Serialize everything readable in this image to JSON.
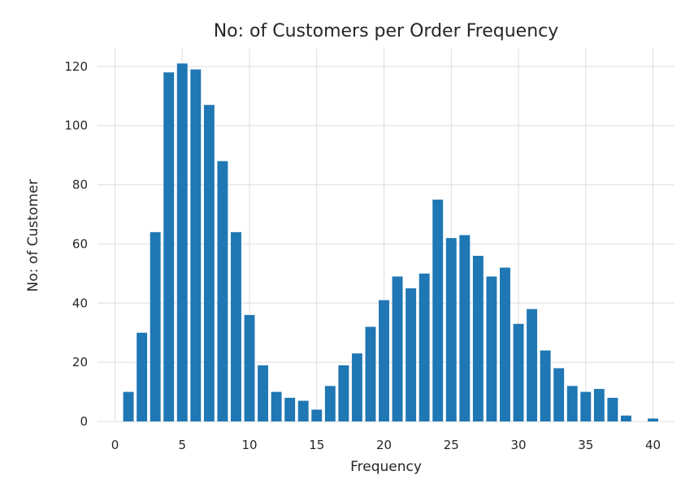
{
  "chart_data": {
    "type": "bar",
    "title": "No: of Customers per Order Frequency",
    "xlabel": "Frequency",
    "ylabel": "No: of Customer",
    "xlim": [
      -1.3,
      41.6
    ],
    "ylim": [
      0,
      126
    ],
    "xticks": [
      0,
      5,
      10,
      15,
      20,
      25,
      30,
      35,
      40
    ],
    "yticks": [
      0,
      20,
      40,
      60,
      80,
      100,
      120
    ],
    "grid": true,
    "bar_color": "#1f77b4",
    "x": [
      1,
      2,
      3,
      4,
      5,
      6,
      7,
      8,
      9,
      10,
      11,
      12,
      13,
      14,
      15,
      16,
      17,
      18,
      19,
      20,
      21,
      22,
      23,
      24,
      25,
      26,
      27,
      28,
      29,
      30,
      31,
      32,
      33,
      34,
      35,
      36,
      37,
      38,
      39,
      40
    ],
    "values": [
      10,
      30,
      64,
      118,
      121,
      119,
      107,
      88,
      64,
      36,
      19,
      10,
      8,
      7,
      4,
      12,
      19,
      23,
      32,
      41,
      49,
      45,
      50,
      75,
      62,
      63,
      56,
      49,
      52,
      33,
      38,
      24,
      18,
      12,
      10,
      11,
      8,
      2,
      0,
      1
    ]
  }
}
